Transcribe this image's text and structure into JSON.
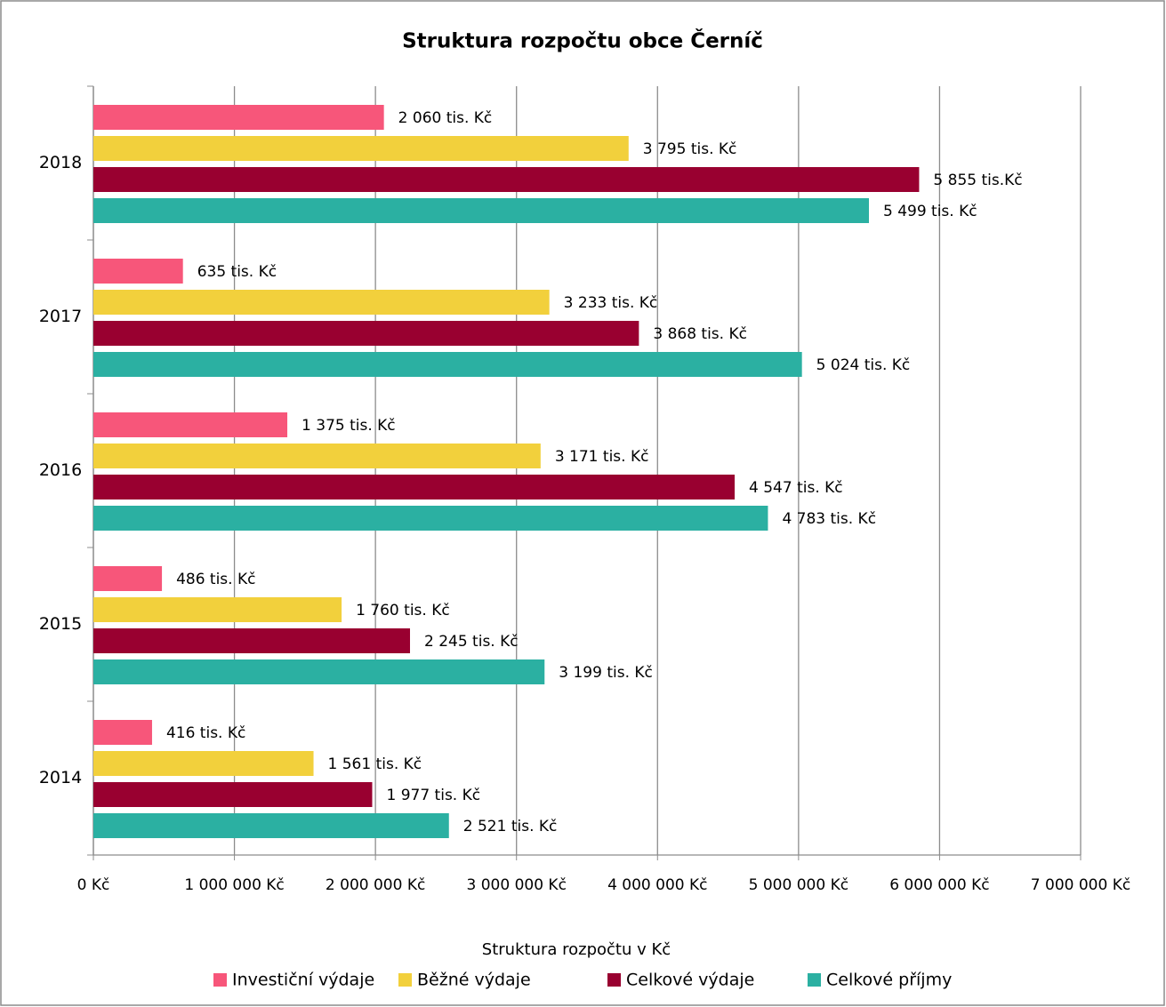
{
  "chart_data": {
    "type": "hbar",
    "title": "Struktura rozpočtu obce Černíč",
    "xlabel": "Struktura rozpočtu v Kč",
    "categories": [
      "2014",
      "2015",
      "2016",
      "2017",
      "2018"
    ],
    "series": [
      {
        "name": "Investiční výdaje",
        "color": "#f7567a",
        "values": [
          416000,
          486000,
          1375000,
          635000,
          2060000
        ],
        "value_labels": [
          "416 tis. Kč",
          "486 tis. Kč",
          "1 375 tis. Kč",
          "635 tis. Kč",
          "2 060 tis. Kč"
        ]
      },
      {
        "name": "Běžné výdaje",
        "color": "#f2d03c",
        "values": [
          1561000,
          1760000,
          3171000,
          3233000,
          3795000
        ],
        "value_labels": [
          "1 561 tis. Kč",
          "1 760 tis. Kč",
          "3 171 tis. Kč",
          "3 233 tis. Kč",
          "3 795 tis. Kč"
        ]
      },
      {
        "name": "Celkové výdaje",
        "color": "#990030",
        "values": [
          1977000,
          2245000,
          4547000,
          3868000,
          5855000
        ],
        "value_labels": [
          "1 977 tis. Kč",
          "2 245 tis. Kč",
          "4 547 tis. Kč",
          "3 868 tis. Kč",
          "5 855 tis.Kč"
        ]
      },
      {
        "name": "Celkové příjmy",
        "color": "#2bb0a2",
        "values": [
          2521000,
          3199000,
          4783000,
          5024000,
          5499000
        ],
        "value_labels": [
          "2 521 tis. Kč",
          "3 199 tis. Kč",
          "4 783 tis. Kč",
          "5 024 tis. Kč",
          "5 499 tis. Kč"
        ]
      }
    ],
    "xlim": [
      0,
      7000000
    ],
    "xticks": [
      {
        "value": 0,
        "label": "0 Kč"
      },
      {
        "value": 1000000,
        "label": "1 000 000 Kč"
      },
      {
        "value": 2000000,
        "label": "2 000 000 Kč"
      },
      {
        "value": 3000000,
        "label": "3 000 000 Kč"
      },
      {
        "value": 4000000,
        "label": "4 000 000 Kč"
      },
      {
        "value": 5000000,
        "label": "5 000 000 Kč"
      },
      {
        "value": 6000000,
        "label": "6 000 000 Kč"
      },
      {
        "value": 7000000,
        "label": "7 000 000 Kč"
      }
    ],
    "grid": true,
    "legend": "bottom"
  }
}
